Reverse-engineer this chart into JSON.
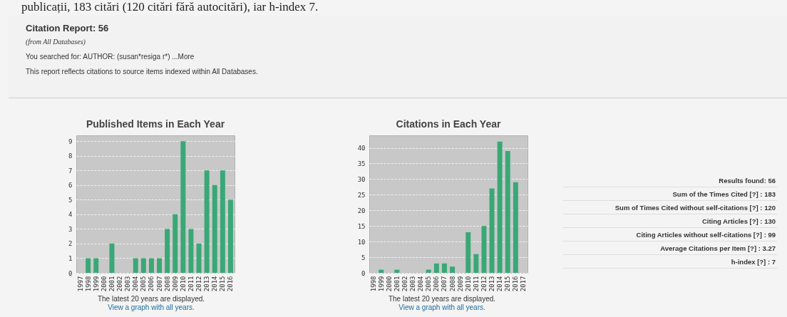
{
  "chart_data": [
    {
      "type": "other",
      "annotations": [
        "publicații, 183 citări (120 citări fără autocitări), iar h-index 7."
      ]
    },
    {
      "type": "other",
      "title": "Citation Report: 56",
      "subtitle": "(from All Databases)",
      "annotations": [
        "You searched for:  AUTHOR: (susan*resiga r*)  ...More",
        "This report reflects citations to source items indexed within All Databases."
      ]
    },
    {
      "type": "bar",
      "title": "Published Items in Each Year",
      "categories": [
        "1997",
        "1998",
        "1999",
        "2000",
        "2001",
        "2002",
        "2003",
        "2004",
        "2005",
        "2006",
        "2007",
        "2008",
        "2009",
        "2010",
        "2011",
        "2012",
        "2013",
        "2014",
        "2015",
        "2016"
      ],
      "values": [
        0,
        1,
        1,
        0,
        2,
        0,
        0,
        1,
        1,
        1,
        1,
        3,
        4,
        9,
        3,
        2,
        7,
        6,
        7,
        5
      ],
      "color": "#3aa876",
      "ylim": [
        0,
        9.4
      ],
      "yticks": [
        0,
        1,
        2,
        3,
        4,
        5,
        6,
        7,
        8,
        9
      ],
      "grid": "y",
      "annotations": [
        "The latest 20 years are displayed.",
        "View a graph with all years."
      ]
    },
    {
      "type": "bar",
      "title": "Citations in Each Year",
      "categories": [
        "1998",
        "1999",
        "2000",
        "2001",
        "2002",
        "2003",
        "2004",
        "2005",
        "2006",
        "2007",
        "2008",
        "2009",
        "2010",
        "2011",
        "2012",
        "2013",
        "2014",
        "2015",
        "2016",
        "2017"
      ],
      "values": [
        0,
        1,
        0,
        1,
        0,
        0,
        0,
        1,
        3,
        3,
        2,
        0,
        13,
        6,
        15,
        27,
        42,
        39,
        29,
        0
      ],
      "color": "#3aa876",
      "ylim": [
        0,
        44
      ],
      "yticks": [
        0,
        5,
        10,
        15,
        20,
        25,
        30,
        35,
        40
      ],
      "grid": "y",
      "annotations": [
        "The latest 20 years are displayed.",
        "View a graph with all years."
      ]
    },
    {
      "type": "other",
      "annotations": [
        "Results found:  56",
        "Sum of the Times Cited [?] :  183",
        "Sum of Times Cited without self-citations [?] :  120",
        "Citing Articles [?] :  130",
        "Citing Articles without self-citations [?] :  99",
        "Average Citations per Item [?] :  3.27",
        "h-index [?] :  7"
      ]
    }
  ]
}
